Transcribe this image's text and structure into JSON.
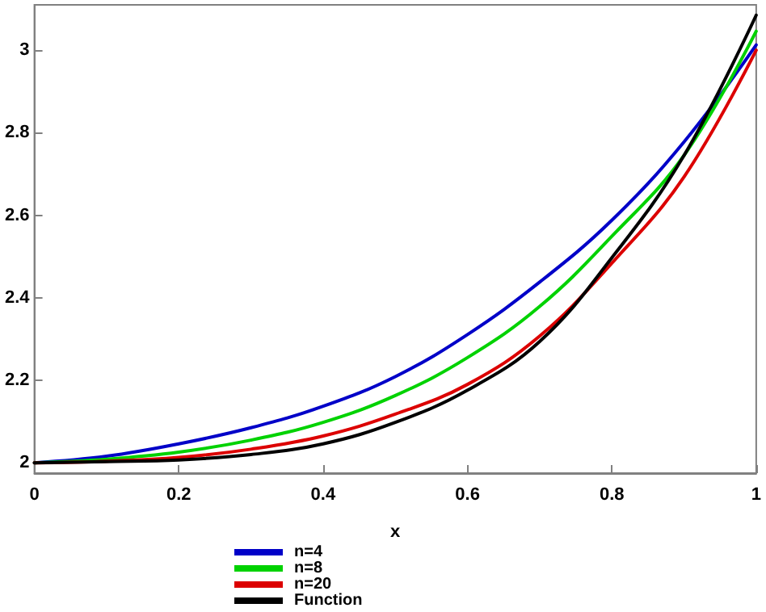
{
  "chart_data": {
    "type": "line",
    "xlabel": "x",
    "x": [
      0,
      0.1,
      0.2,
      0.3,
      0.4,
      0.5,
      0.6,
      0.7,
      0.8,
      0.9,
      1
    ],
    "series": [
      {
        "name": "n=4",
        "color": "#0000c8",
        "values": [
          2.0,
          2.016,
          2.046,
          2.085,
          2.137,
          2.209,
          2.311,
          2.438,
          2.588,
          2.778,
          3.013
        ]
      },
      {
        "name": "n=8",
        "color": "#00d200",
        "values": [
          2.0,
          2.009,
          2.026,
          2.055,
          2.098,
          2.163,
          2.255,
          2.379,
          2.549,
          2.745,
          3.046
        ]
      },
      {
        "name": "n=20",
        "color": "#dc0000",
        "values": [
          2.0,
          2.004,
          2.013,
          2.033,
          2.065,
          2.118,
          2.19,
          2.307,
          2.484,
          2.693,
          3.0
        ]
      },
      {
        "name": "Function",
        "color": "#000000",
        "values": [
          2.0,
          2.003,
          2.007,
          2.02,
          2.046,
          2.098,
          2.176,
          2.294,
          2.497,
          2.745,
          3.085
        ]
      }
    ],
    "xlim": [
      0,
      1
    ],
    "xticks": [
      0,
      0.2,
      0.4,
      0.6,
      0.8,
      1
    ],
    "ylim": [
      1.975,
      3.11
    ],
    "yticks": [
      2,
      2.2,
      2.4,
      2.6,
      2.8,
      3
    ],
    "grid": false,
    "legend": "bottom",
    "marker": "none",
    "line_style": "solid"
  }
}
